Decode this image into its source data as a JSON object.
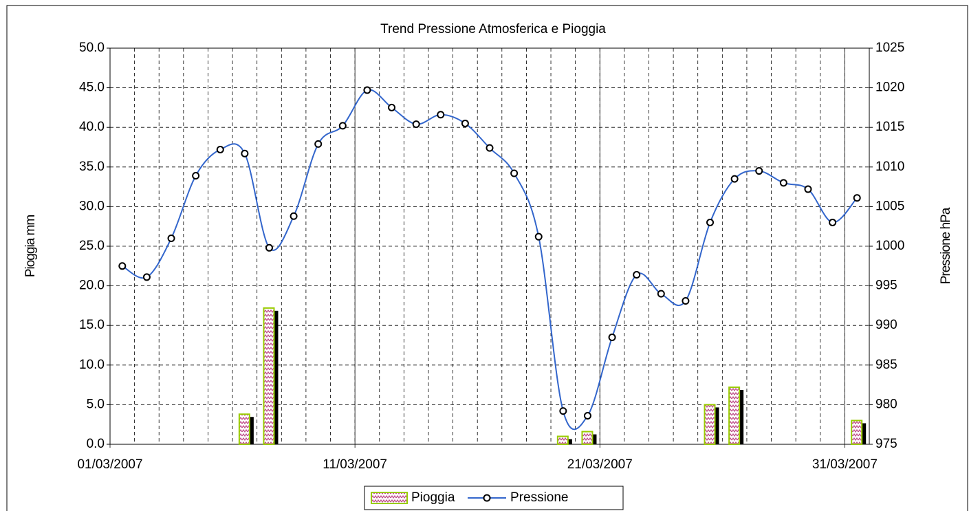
{
  "chart_data": {
    "type": "combo",
    "title": "Trend Pressione Atmosferica e Pioggia",
    "y_label": "Pioggia mm",
    "y2_label": "Pressione hPa",
    "x": [
      "2007-03-01",
      "2007-03-02",
      "2007-03-03",
      "2007-03-04",
      "2007-03-05",
      "2007-03-06",
      "2007-03-07",
      "2007-03-08",
      "2007-03-09",
      "2007-03-10",
      "2007-03-11",
      "2007-03-12",
      "2007-03-13",
      "2007-03-14",
      "2007-03-15",
      "2007-03-16",
      "2007-03-17",
      "2007-03-18",
      "2007-03-19",
      "2007-03-20",
      "2007-03-21",
      "2007-03-22",
      "2007-03-23",
      "2007-03-24",
      "2007-03-25",
      "2007-03-26",
      "2007-03-27",
      "2007-03-28",
      "2007-03-29",
      "2007-03-30",
      "2007-03-31"
    ],
    "series": [
      {
        "name": "Pioggia",
        "type": "bar",
        "color": "#99cc00",
        "values": [
          0,
          0,
          0,
          0,
          0,
          3.8,
          17.2,
          0,
          0,
          0,
          0,
          0,
          0,
          0,
          0,
          0,
          0,
          0,
          1.0,
          1.6,
          0,
          0,
          0,
          0,
          5.0,
          7.2,
          0,
          0,
          0,
          0,
          3.0
        ]
      },
      {
        "name": "Pressione",
        "type": "line",
        "axis": "y2",
        "color": "#3366cc",
        "values": [
          997.5,
          996.1,
          1001.0,
          1008.9,
          1012.2,
          1011.7,
          999.8,
          1003.8,
          1012.9,
          1015.2,
          1019.7,
          1017.5,
          1015.4,
          1016.6,
          1015.5,
          1012.4,
          1009.2,
          1001.2,
          979.2,
          978.6,
          988.5,
          996.4,
          994.0,
          993.1,
          1003.0,
          1008.5,
          1009.5,
          1008.0,
          1007.2,
          1003.0,
          1006.1
        ]
      }
    ],
    "xlim": [
      "2007-03-01",
      "2007-04-01"
    ],
    "xticks": [
      {
        "value": "2007-03-01",
        "label": "01/03/2007"
      },
      {
        "value": "2007-03-11",
        "label": "11/03/2007"
      },
      {
        "value": "2007-03-21",
        "label": "21/03/2007"
      },
      {
        "value": "2007-03-31",
        "label": "31/03/2007"
      }
    ],
    "ylim": [
      0,
      50
    ],
    "yticks": [
      {
        "value": 0,
        "label": "0.0"
      },
      {
        "value": 5,
        "label": "5.0"
      },
      {
        "value": 10,
        "label": "10.0"
      },
      {
        "value": 15,
        "label": "15.0"
      },
      {
        "value": 20,
        "label": "20.0"
      },
      {
        "value": 25,
        "label": "25.0"
      },
      {
        "value": 30,
        "label": "30.0"
      },
      {
        "value": 35,
        "label": "35.0"
      },
      {
        "value": 40,
        "label": "40.0"
      },
      {
        "value": 45,
        "label": "45.0"
      },
      {
        "value": 50,
        "label": "50.0"
      }
    ],
    "y2lim": [
      975,
      1025
    ],
    "y2ticks": [
      975,
      980,
      985,
      990,
      995,
      1000,
      1005,
      1010,
      1015,
      1020,
      1025
    ],
    "grid": true,
    "legend": "bottom"
  }
}
